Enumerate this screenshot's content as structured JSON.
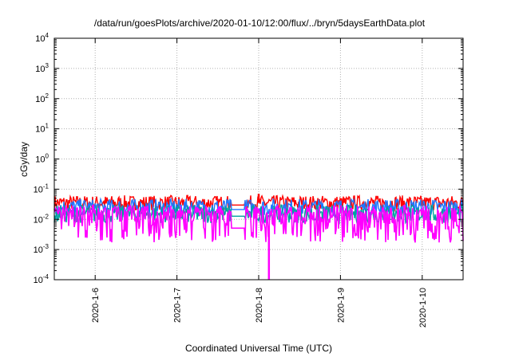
{
  "chart_data": {
    "type": "line",
    "title": "/data/run/goesPlots/archive/2020-01-10/12:00/flux/../bryn/5daysEarthData.plot",
    "xlabel": "Coordinated Universal Time (UTC)",
    "ylabel": "cGy/day",
    "y_scale": "log",
    "ylim": [
      0.0001,
      10000
    ],
    "y_ticks": [
      {
        "value": 0.0001,
        "base": "10",
        "exp": "-4"
      },
      {
        "value": 0.001,
        "base": "10",
        "exp": "-3"
      },
      {
        "value": 0.01,
        "base": "10",
        "exp": "-2"
      },
      {
        "value": 0.1,
        "base": "10",
        "exp": "-1"
      },
      {
        "value": 1,
        "base": "10",
        "exp": "0"
      },
      {
        "value": 10,
        "base": "10",
        "exp": "1"
      },
      {
        "value": 100,
        "base": "10",
        "exp": "2"
      },
      {
        "value": 1000,
        "base": "10",
        "exp": "3"
      },
      {
        "value": 10000,
        "base": "10",
        "exp": "4"
      }
    ],
    "x_range": [
      "2020-01-05 12:00",
      "2020-01-10 12:00"
    ],
    "x_ticks": [
      "2020-1-6",
      "2020-1-7",
      "2020-1-8",
      "2020-1-9",
      "2020-1-10"
    ],
    "grid": true,
    "series": [
      {
        "color": "#ff0000",
        "level": 0.035,
        "spread": 0.25,
        "spikes": [
          {
            "x": "2020-01-08 00:00",
            "y": 0.07
          }
        ]
      },
      {
        "color": "#1f77ff",
        "level": 0.025,
        "spread": 0.28,
        "spikes": []
      },
      {
        "color": "#00a0a0",
        "level": 0.015,
        "spread": 0.3,
        "spikes": []
      },
      {
        "color": "#ff00ff",
        "level": 0.006,
        "spread": 0.55,
        "spikes": [
          {
            "x": "2020-01-08 03:00",
            "y": 0.0001
          }
        ]
      }
    ],
    "gap_dips": [
      {
        "x_start": "2020-01-07 16:00",
        "x_end": "2020-01-07 20:00"
      }
    ]
  }
}
